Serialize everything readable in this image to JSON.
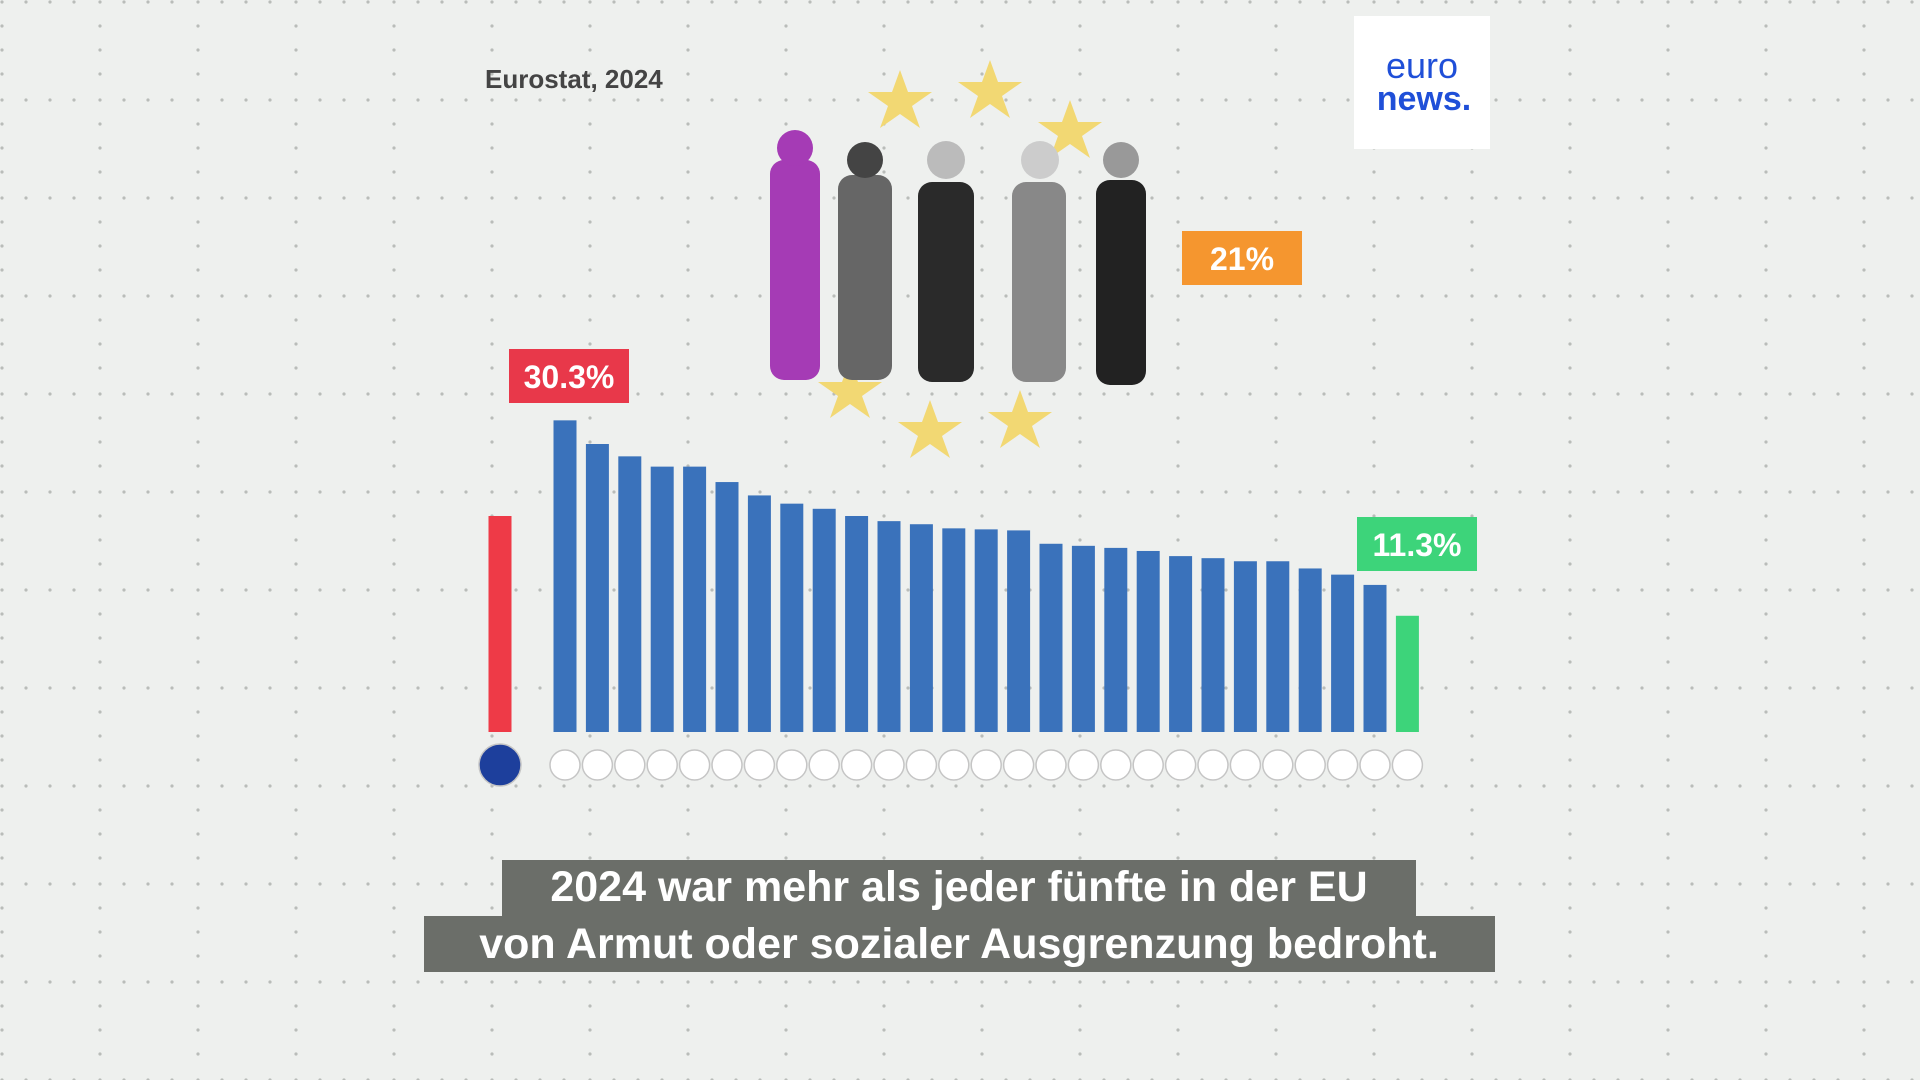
{
  "source": "Eurostat, 2024",
  "logo": {
    "line1": "euro",
    "line2": "news."
  },
  "caption": [
    "2024 war mehr als jeder fünfte in der EU",
    "von Armut oder sozialer Ausgrenzung bedroht."
  ],
  "chart_data": {
    "type": "bar",
    "values": [
      21,
      30.3,
      28.0,
      26.8,
      25.8,
      25.8,
      24.3,
      23.0,
      22.2,
      21.7,
      21.0,
      20.5,
      20.2,
      19.8,
      19.7,
      19.6,
      18.3,
      18.1,
      17.9,
      17.6,
      17.1,
      16.9,
      16.6,
      16.6,
      15.9,
      15.3,
      14.3,
      11.3
    ],
    "value_labels": [
      "21%",
      "30.3%",
      null,
      null,
      null,
      null,
      null,
      null,
      null,
      null,
      null,
      null,
      null,
      null,
      null,
      null,
      null,
      null,
      null,
      null,
      null,
      null,
      null,
      null,
      null,
      null,
      null,
      "11.3%"
    ],
    "colors": [
      "#ee3a47",
      "#3a72bb",
      "#3a72bb",
      "#3a72bb",
      "#3a72bb",
      "#3a72bb",
      "#3a72bb",
      "#3a72bb",
      "#3a72bb",
      "#3a72bb",
      "#3a72bb",
      "#3a72bb",
      "#3a72bb",
      "#3a72bb",
      "#3a72bb",
      "#3a72bb",
      "#3a72bb",
      "#3a72bb",
      "#3a72bb",
      "#3a72bb",
      "#3a72bb",
      "#3a72bb",
      "#3a72bb",
      "#3a72bb",
      "#3a72bb",
      "#3a72bb",
      "#3a72bb",
      "#3dd47a"
    ],
    "value_label_colors": [
      "#f5962f",
      "#e8384a",
      null,
      null,
      null,
      null,
      null,
      null,
      null,
      null,
      null,
      null,
      null,
      null,
      null,
      null,
      null,
      null,
      null,
      null,
      null,
      null,
      null,
      null,
      null,
      null,
      null,
      "#3dd47a"
    ],
    "ylim": [
      0,
      35
    ]
  }
}
